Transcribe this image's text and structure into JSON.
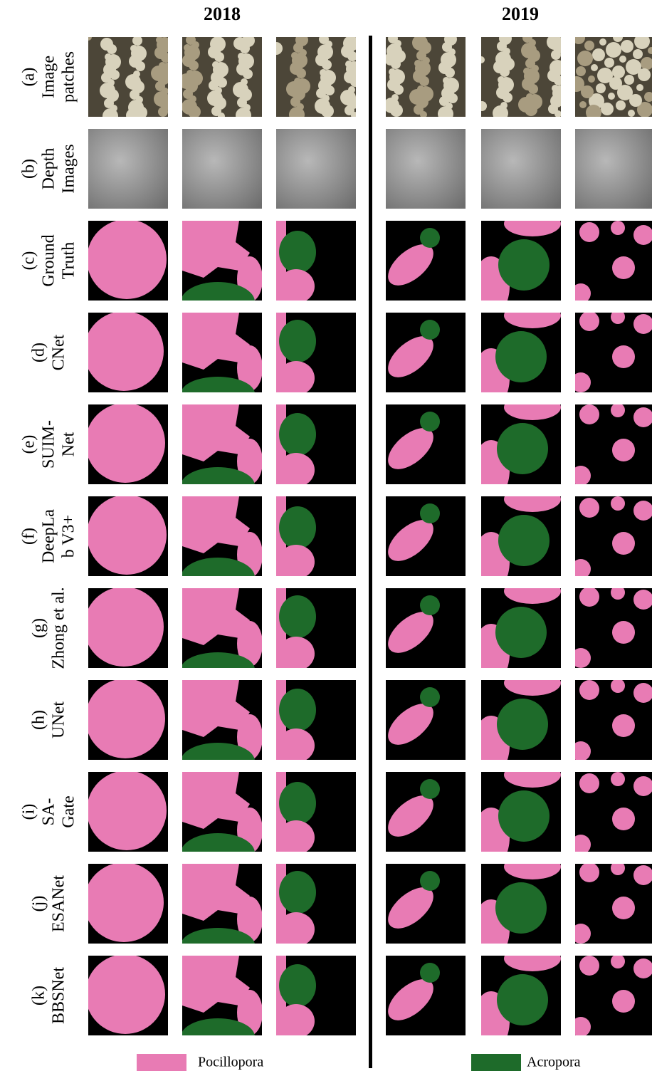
{
  "headers": [
    "2018",
    "2019"
  ],
  "rows": [
    {
      "lines": [
        "(a)",
        "Image",
        "patches"
      ]
    },
    {
      "lines": [
        "(b)",
        "Depth",
        "Images"
      ]
    },
    {
      "lines": [
        "(c)",
        "Ground",
        "Truth"
      ]
    },
    {
      "lines": [
        "(d)",
        "CNet"
      ]
    },
    {
      "lines": [
        "(e)",
        "SUIM-",
        "Net"
      ]
    },
    {
      "lines": [
        "(f)",
        "DeepLa",
        "b V3+"
      ]
    },
    {
      "lines": [
        "(g)",
        "Zhong et al."
      ]
    },
    {
      "lines": [
        "(h)",
        "UNet"
      ]
    },
    {
      "lines": [
        "(i)",
        "SA-",
        "Gate"
      ]
    },
    {
      "lines": [
        "(j)",
        "ESANet"
      ]
    },
    {
      "lines": [
        "(k)",
        "BBSNet"
      ]
    }
  ],
  "legend": [
    {
      "label": "Pocillopora",
      "color": "#e87bb4"
    },
    {
      "label": "Acropora",
      "color": "#1e6b2a"
    }
  ]
}
